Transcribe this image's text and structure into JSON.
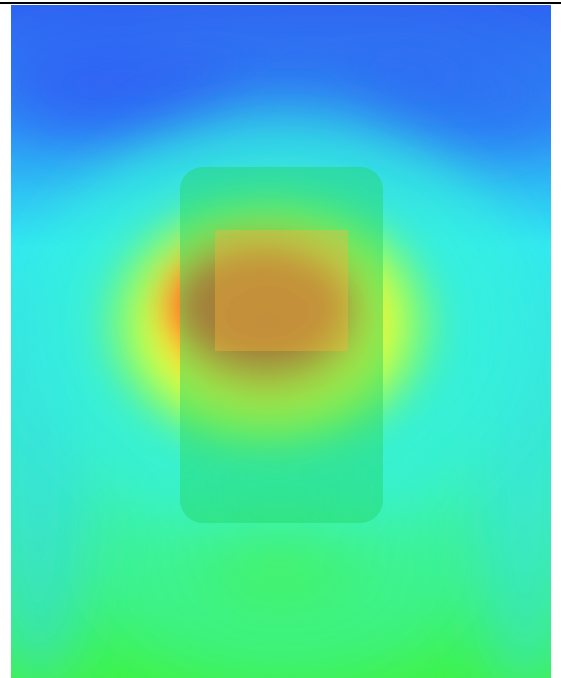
{
  "figure": {
    "kind": "heatmap-overlay",
    "colormap": [
      "#2f65f2",
      "#2ea5f7",
      "#33f0f2",
      "#3ff86a",
      "#fbff3a",
      "#ff4424"
    ],
    "annotations": {
      "outer_region_color": "#2ecc55",
      "outer_region_shape": "rounded-rectangle",
      "inner_region_color": "#ffb13c",
      "inner_region_shape": "rectangle"
    }
  }
}
